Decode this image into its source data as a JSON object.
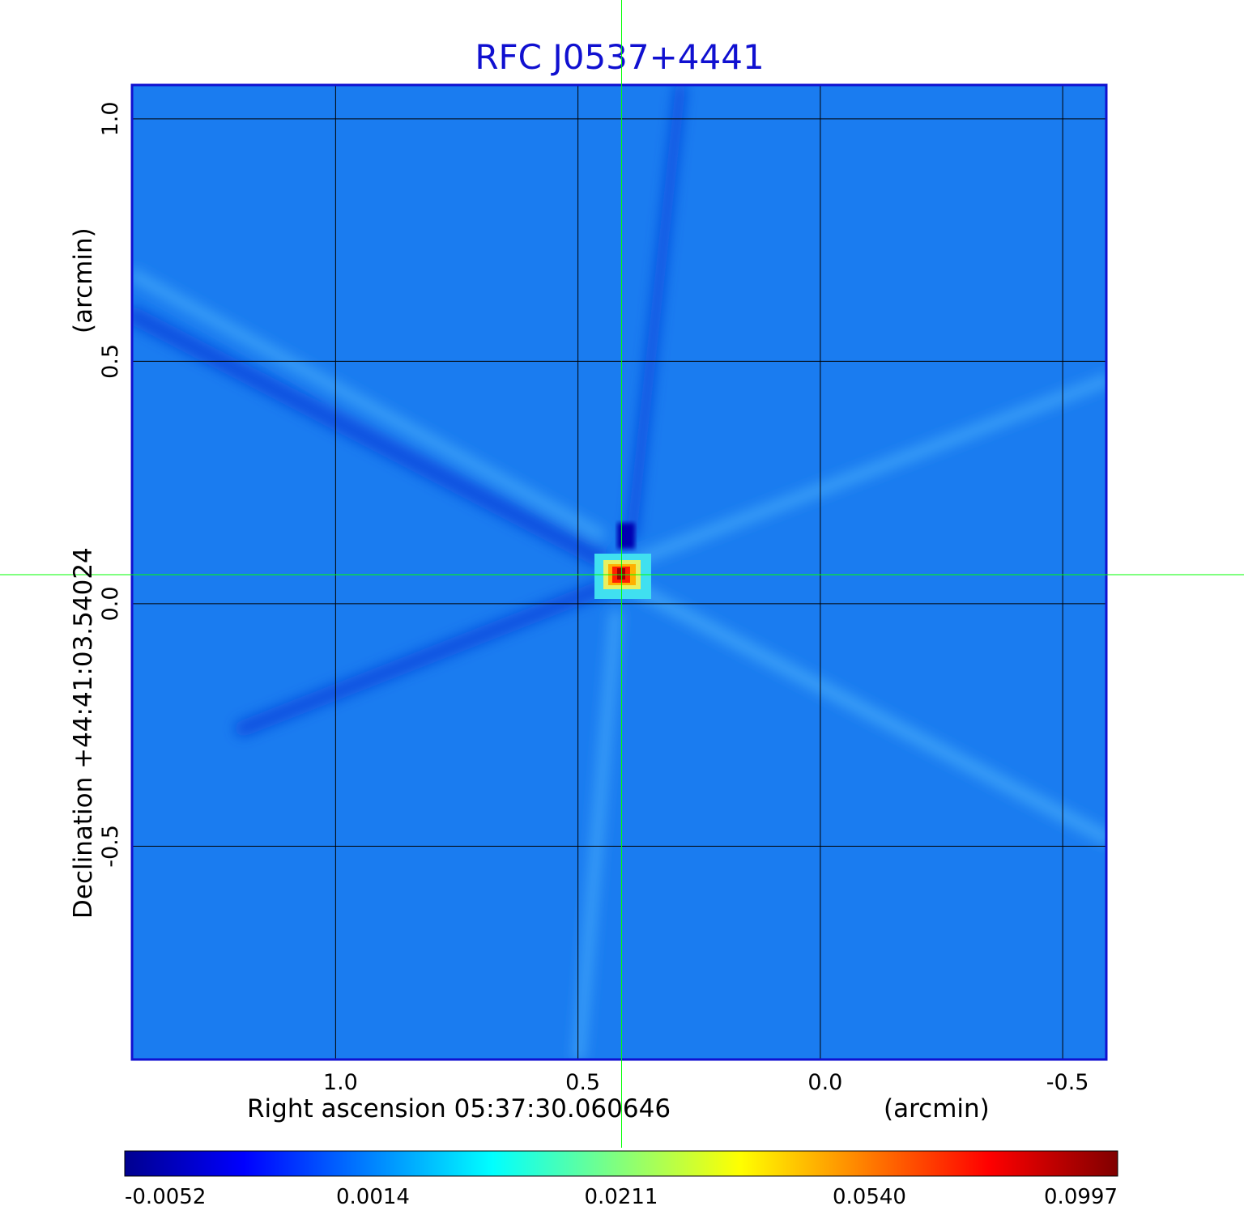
{
  "chart_data": {
    "type": "heatmap",
    "title": "RFC J0537+4441",
    "xlabel": "Right ascension  05:37:30.060646",
    "xlabel_unit": "(arcmin)",
    "ylabel": "Declination  +44:41:03.54024",
    "ylabel_unit": "(arcmin)",
    "x_axis": {
      "ticks": [
        1.0,
        0.5,
        0.0,
        -0.5
      ],
      "tick_labels": [
        "1.0",
        "0.5",
        "0.0",
        "-0.5"
      ],
      "range": [
        1.42,
        -0.59
      ],
      "direction": "decreasing to the right"
    },
    "y_axis": {
      "ticks": [
        1.0,
        0.5,
        0.0,
        -0.5
      ],
      "tick_labels": [
        "1.0",
        "0.5",
        "0.0",
        "-0.5"
      ],
      "range": [
        -0.94,
        1.07
      ]
    },
    "grid": true,
    "colormap": "jet",
    "colorbar": {
      "placement": "bottom",
      "ticks": [
        -0.0052,
        0.0014,
        0.0211,
        0.054,
        0.0997
      ],
      "tick_labels": [
        "-0.0052",
        "0.0014",
        "0.0211",
        "0.0540",
        "0.0997"
      ]
    },
    "peak": {
      "x": 0.41,
      "y": 0.06,
      "value": 0.0997
    },
    "background_level": 0.0,
    "crosshair": {
      "x": 0.41,
      "y": 0.06
    }
  },
  "colors": {
    "title": "#1010d0",
    "frame": "#1010d0",
    "crosshair": "#00ff00",
    "background_map": "#1a7cf0"
  }
}
